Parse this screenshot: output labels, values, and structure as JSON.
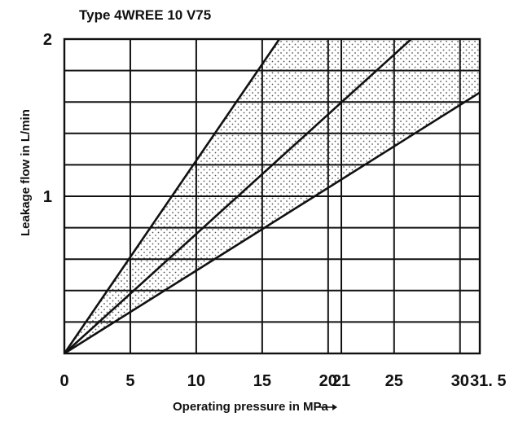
{
  "chart_data": {
    "type": "line",
    "title": "Type 4WREE 10 V75",
    "xlabel": "Operating pressure in MPa",
    "ylabel": "Leakage flow in L/min",
    "x_tick_labels": [
      "0",
      "5",
      "10",
      "15",
      "20",
      "21",
      "25",
      "30",
      "31. 5"
    ],
    "x_ticks": [
      0,
      5,
      10,
      15,
      20,
      21,
      25,
      30,
      31.5
    ],
    "y_tick_labels": [
      "1",
      "2"
    ],
    "y_ticks": [
      1,
      2
    ],
    "xlim": [
      0,
      31.5
    ],
    "ylim": [
      0,
      2
    ],
    "x_grid": [
      0,
      5,
      10,
      15,
      20,
      21,
      25,
      30,
      31.5
    ],
    "y_grid": [
      0,
      0.2,
      0.4,
      0.6,
      0.8,
      1.0,
      1.2,
      1.4,
      1.6,
      1.8,
      2.0
    ],
    "grid": true,
    "legend": "none",
    "series": [
      {
        "x": [
          0,
          16.3
        ],
        "y": [
          0,
          2.0
        ]
      },
      {
        "x": [
          0,
          26.3
        ],
        "y": [
          0,
          2.0
        ]
      },
      {
        "x": [
          0,
          31.5
        ],
        "y": [
          0,
          1.66
        ]
      }
    ],
    "shaded_band": {
      "between_series": [
        0,
        2
      ],
      "pattern": "dotted"
    },
    "colors": {
      "lines": "#111111",
      "grid": "#111111",
      "background": "#ffffff",
      "dots": "#555555"
    }
  }
}
